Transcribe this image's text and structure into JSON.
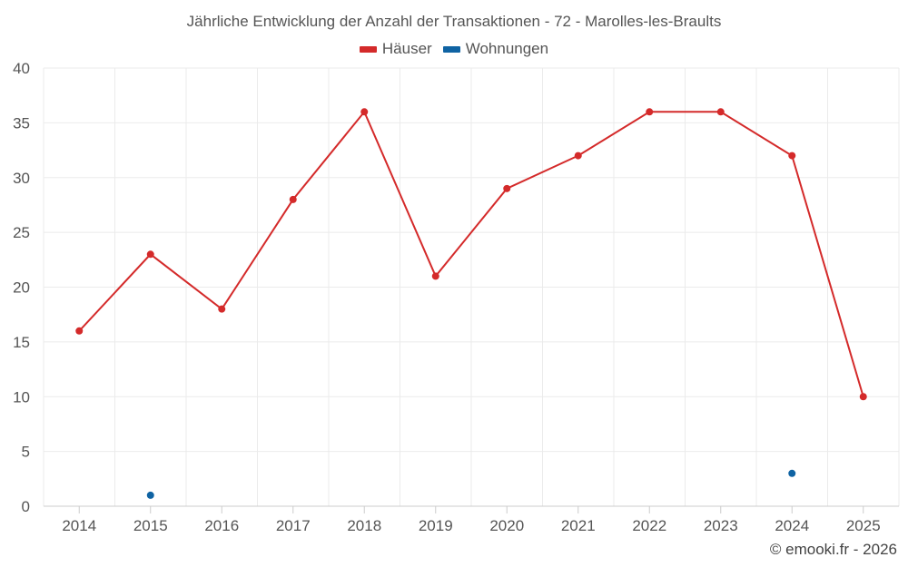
{
  "chart_data": {
    "type": "line",
    "title": "Jährliche Entwicklung der Anzahl der Transaktionen - 72 - Marolles-les-Braults",
    "categories": [
      "2014",
      "2015",
      "2016",
      "2017",
      "2018",
      "2019",
      "2020",
      "2021",
      "2022",
      "2023",
      "2024",
      "2025"
    ],
    "series": [
      {
        "name": "Häuser",
        "color": "#d42a2a",
        "values": [
          16,
          23,
          18,
          28,
          36,
          21,
          29,
          32,
          36,
          36,
          32,
          10
        ]
      },
      {
        "name": "Wohnungen",
        "color": "#0f63a3",
        "values": [
          null,
          1,
          null,
          null,
          null,
          null,
          null,
          null,
          null,
          null,
          3,
          null
        ]
      }
    ],
    "xlabel": "",
    "ylabel": "",
    "ylim": [
      0,
      40
    ],
    "yticks": [
      "0",
      "5",
      "10",
      "15",
      "20",
      "25",
      "30",
      "35",
      "40"
    ],
    "grid": true,
    "legend": "top-center"
  },
  "footer": {
    "credit": "© emooki.fr - 2026"
  }
}
